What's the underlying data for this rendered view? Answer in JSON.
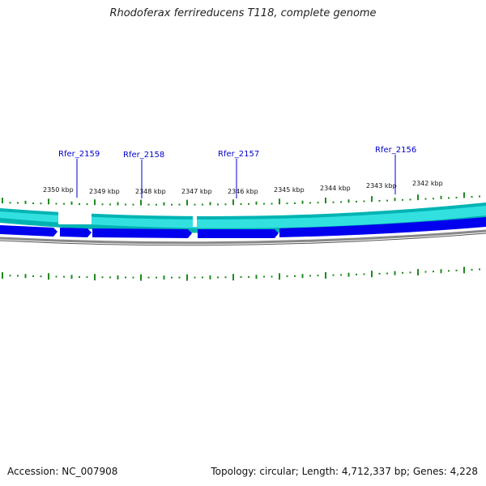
{
  "title": "Rhodoferax ferrireducens T118, complete genome",
  "accession_label": "Accession: NC_007908",
  "summary_label": "Topology: circular; Length: 4,712,337 bp; Genes: 4,228",
  "colors": {
    "gene_forward_outer": "#00b3b3",
    "gene_forward_inner": "#33e0e0",
    "gene_reverse": "#0000ee",
    "backbone": "#888888",
    "gc_skew": "#1e8a1e",
    "gene_label": "#0000cc",
    "backbone_dark": "#006e6e"
  },
  "scale": [
    {
      "label": "2350 kbp"
    },
    {
      "label": "2349 kbp"
    },
    {
      "label": "2348 kbp"
    },
    {
      "label": "2347 kbp"
    },
    {
      "label": "2346 kbp"
    },
    {
      "label": "2345 kbp"
    },
    {
      "label": "2344 kbp"
    },
    {
      "label": "2343 kbp"
    },
    {
      "label": "2342 kbp"
    }
  ],
  "genes": [
    {
      "name": "Rfer_2159"
    },
    {
      "name": "Rfer_2158"
    },
    {
      "name": "Rfer_2157"
    },
    {
      "name": "Rfer_2156"
    }
  ]
}
